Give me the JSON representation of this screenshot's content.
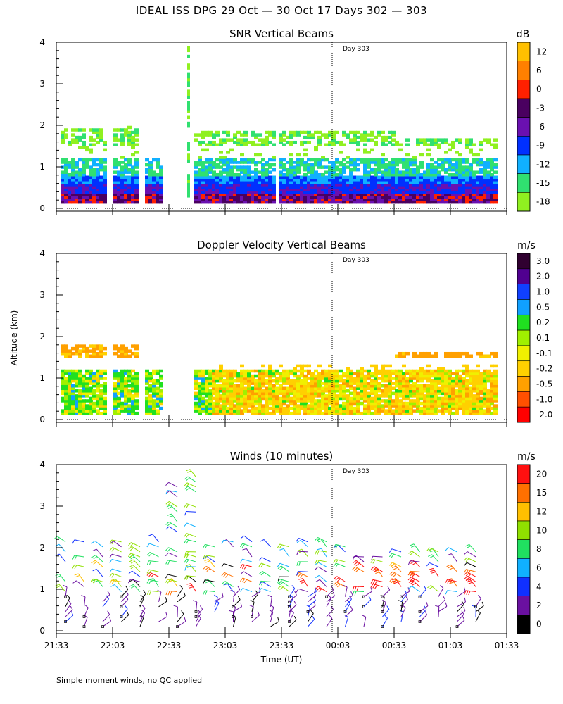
{
  "figure": {
    "title": "IDEAL ISS DPG  29 Oct — 30 Oct 17 Days 302 — 303",
    "footnote": "Simple moment winds, no QC applied",
    "ylabel": "Altitude (km)",
    "xlabel": "Time (UT)",
    "day_marker_label": "Day 303"
  },
  "chart_data": [
    {
      "type": "heatmap",
      "title": "SNR Vertical Beams",
      "colorbar_unit": "dB",
      "colorbar_labels": [
        "12",
        "6",
        "0",
        "-3",
        "-6",
        "-9",
        "-12",
        "-15",
        "-18"
      ],
      "colorbar_colors": [
        "#ffc000",
        "#ff8000",
        "#ff2000",
        "#4a0060",
        "#6a10b0",
        "#0030ff",
        "#10b0ff",
        "#30e070",
        "#90f020"
      ],
      "yticks": [
        "0",
        "1",
        "2",
        "3",
        "4"
      ],
      "ylim": [
        0,
        4
      ],
      "x_ticks": [
        "21:33",
        "22:03",
        "22:33",
        "23:03",
        "23:33",
        "00:03",
        "00:33",
        "01:03",
        "01:33"
      ]
    },
    {
      "type": "heatmap",
      "title": "Doppler Velocity Vertical Beams",
      "colorbar_unit": "m/s",
      "colorbar_labels": [
        "3.0",
        "2.0",
        "1.0",
        "0.5",
        "0.2",
        "0.1",
        "-0.1",
        "-0.2",
        "-0.5",
        "-1.0",
        "-2.0"
      ],
      "colorbar_colors": [
        "#300030",
        "#500090",
        "#1040ff",
        "#10a0ff",
        "#20e020",
        "#a0f000",
        "#f0f000",
        "#ffd000",
        "#ffa000",
        "#ff5000",
        "#ff0000"
      ],
      "yticks": [
        "0",
        "1",
        "2",
        "3",
        "4"
      ],
      "ylim": [
        0,
        4
      ],
      "x_ticks": [
        "21:33",
        "22:03",
        "22:33",
        "23:03",
        "23:33",
        "00:03",
        "00:33",
        "01:03",
        "01:33"
      ]
    },
    {
      "type": "wind-barbs",
      "title": "Winds (10 minutes)",
      "colorbar_unit": "m/s",
      "colorbar_labels": [
        "20",
        "15",
        "12",
        "10",
        "8",
        "6",
        "4",
        "2",
        "0"
      ],
      "colorbar_colors": [
        "#ff1010",
        "#ff7000",
        "#ffc000",
        "#90e000",
        "#20e060",
        "#10b0ff",
        "#1030ff",
        "#6a10a0",
        "#000000"
      ],
      "yticks": [
        "0",
        "1",
        "2",
        "3",
        "4"
      ],
      "ylim": [
        0,
        4
      ],
      "x_ticks": [
        "21:33",
        "22:03",
        "22:33",
        "23:03",
        "23:33",
        "00:03",
        "00:33",
        "01:03",
        "01:33"
      ]
    }
  ]
}
